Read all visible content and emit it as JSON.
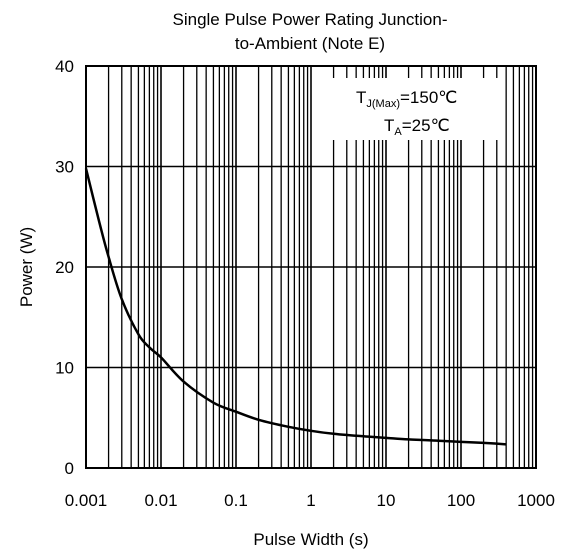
{
  "chart_data": {
    "type": "line",
    "title_lines": [
      "Single Pulse Power Rating Junction-",
      "to-Ambient (Note E)"
    ],
    "xlabel": "Pulse Width (s)",
    "ylabel": "Power (W)",
    "x_scale": "log",
    "xlim": [
      0.001,
      1000
    ],
    "ylim": [
      0,
      40
    ],
    "x_tick_labels": [
      "0.001",
      "0.01",
      "0.1",
      "1",
      "10",
      "100",
      "1000"
    ],
    "y_tick_labels": [
      "0",
      "10",
      "20",
      "30",
      "40"
    ],
    "grid": true,
    "annotations": {
      "line1_main": "T",
      "line1_sub": "J(Max)",
      "line1_rest": "=150℃",
      "line2_main": "T",
      "line2_sub": "A",
      "line2_rest": "=25℃"
    },
    "series": [
      {
        "x": [
          0.001,
          0.0015,
          0.002,
          0.003,
          0.005,
          0.007,
          0.01,
          0.02,
          0.05,
          0.1,
          0.2,
          0.5,
          1,
          2,
          5,
          10,
          20,
          50,
          100,
          200,
          400
        ],
        "y": [
          29.8,
          24.5,
          21,
          16.8,
          13.3,
          12,
          11,
          8.6,
          6.5,
          5.6,
          4.8,
          4.1,
          3.7,
          3.4,
          3.15,
          3.0,
          2.85,
          2.72,
          2.6,
          2.5,
          2.35
        ]
      }
    ]
  }
}
